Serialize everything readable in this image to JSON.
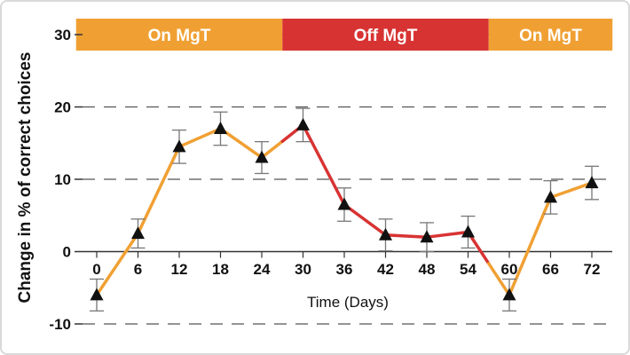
{
  "chart_data": {
    "type": "line",
    "title": "",
    "xlabel": "Time (Days)",
    "ylabel": "Change in % of correct choices",
    "x": [
      0,
      6,
      12,
      18,
      24,
      30,
      36,
      42,
      48,
      54,
      60,
      66,
      72
    ],
    "x_ticks": [
      "0",
      "6",
      "12",
      "18",
      "24",
      "30",
      "36",
      "42",
      "48",
      "54",
      "60",
      "66",
      "72"
    ],
    "xlim": [
      0,
      72
    ],
    "y_ticks": [
      "30",
      "20",
      "10",
      "0",
      "-10"
    ],
    "y_tick_values": [
      30,
      20,
      10,
      0,
      -10
    ],
    "ylim": [
      -10,
      30
    ],
    "grid": "horizontal dashed",
    "series": [
      {
        "values": [
          -6,
          2.5,
          14.5,
          17,
          13,
          17.5,
          6.5,
          2.3,
          2,
          2.7,
          -6,
          7.5,
          9.5
        ],
        "error": [
          2.2,
          2,
          2.3,
          2.3,
          2.2,
          2.3,
          2.3,
          2.2,
          2,
          2.2,
          2.2,
          2.3,
          2.3
        ],
        "marker": "triangle"
      }
    ],
    "phases": [
      {
        "label": "On MgT",
        "start": -3,
        "end": 27,
        "color": "#f0a033"
      },
      {
        "label": "Off MgT",
        "start": 27,
        "end": 57,
        "color": "#d83333"
      },
      {
        "label": "On MgT",
        "start": 57,
        "end": 75,
        "color": "#f0a033"
      }
    ],
    "colors": {
      "on": "#f0a033",
      "off": "#d83333",
      "marker": "#111111",
      "errorbar": "#777777",
      "grid": "#555555"
    }
  }
}
